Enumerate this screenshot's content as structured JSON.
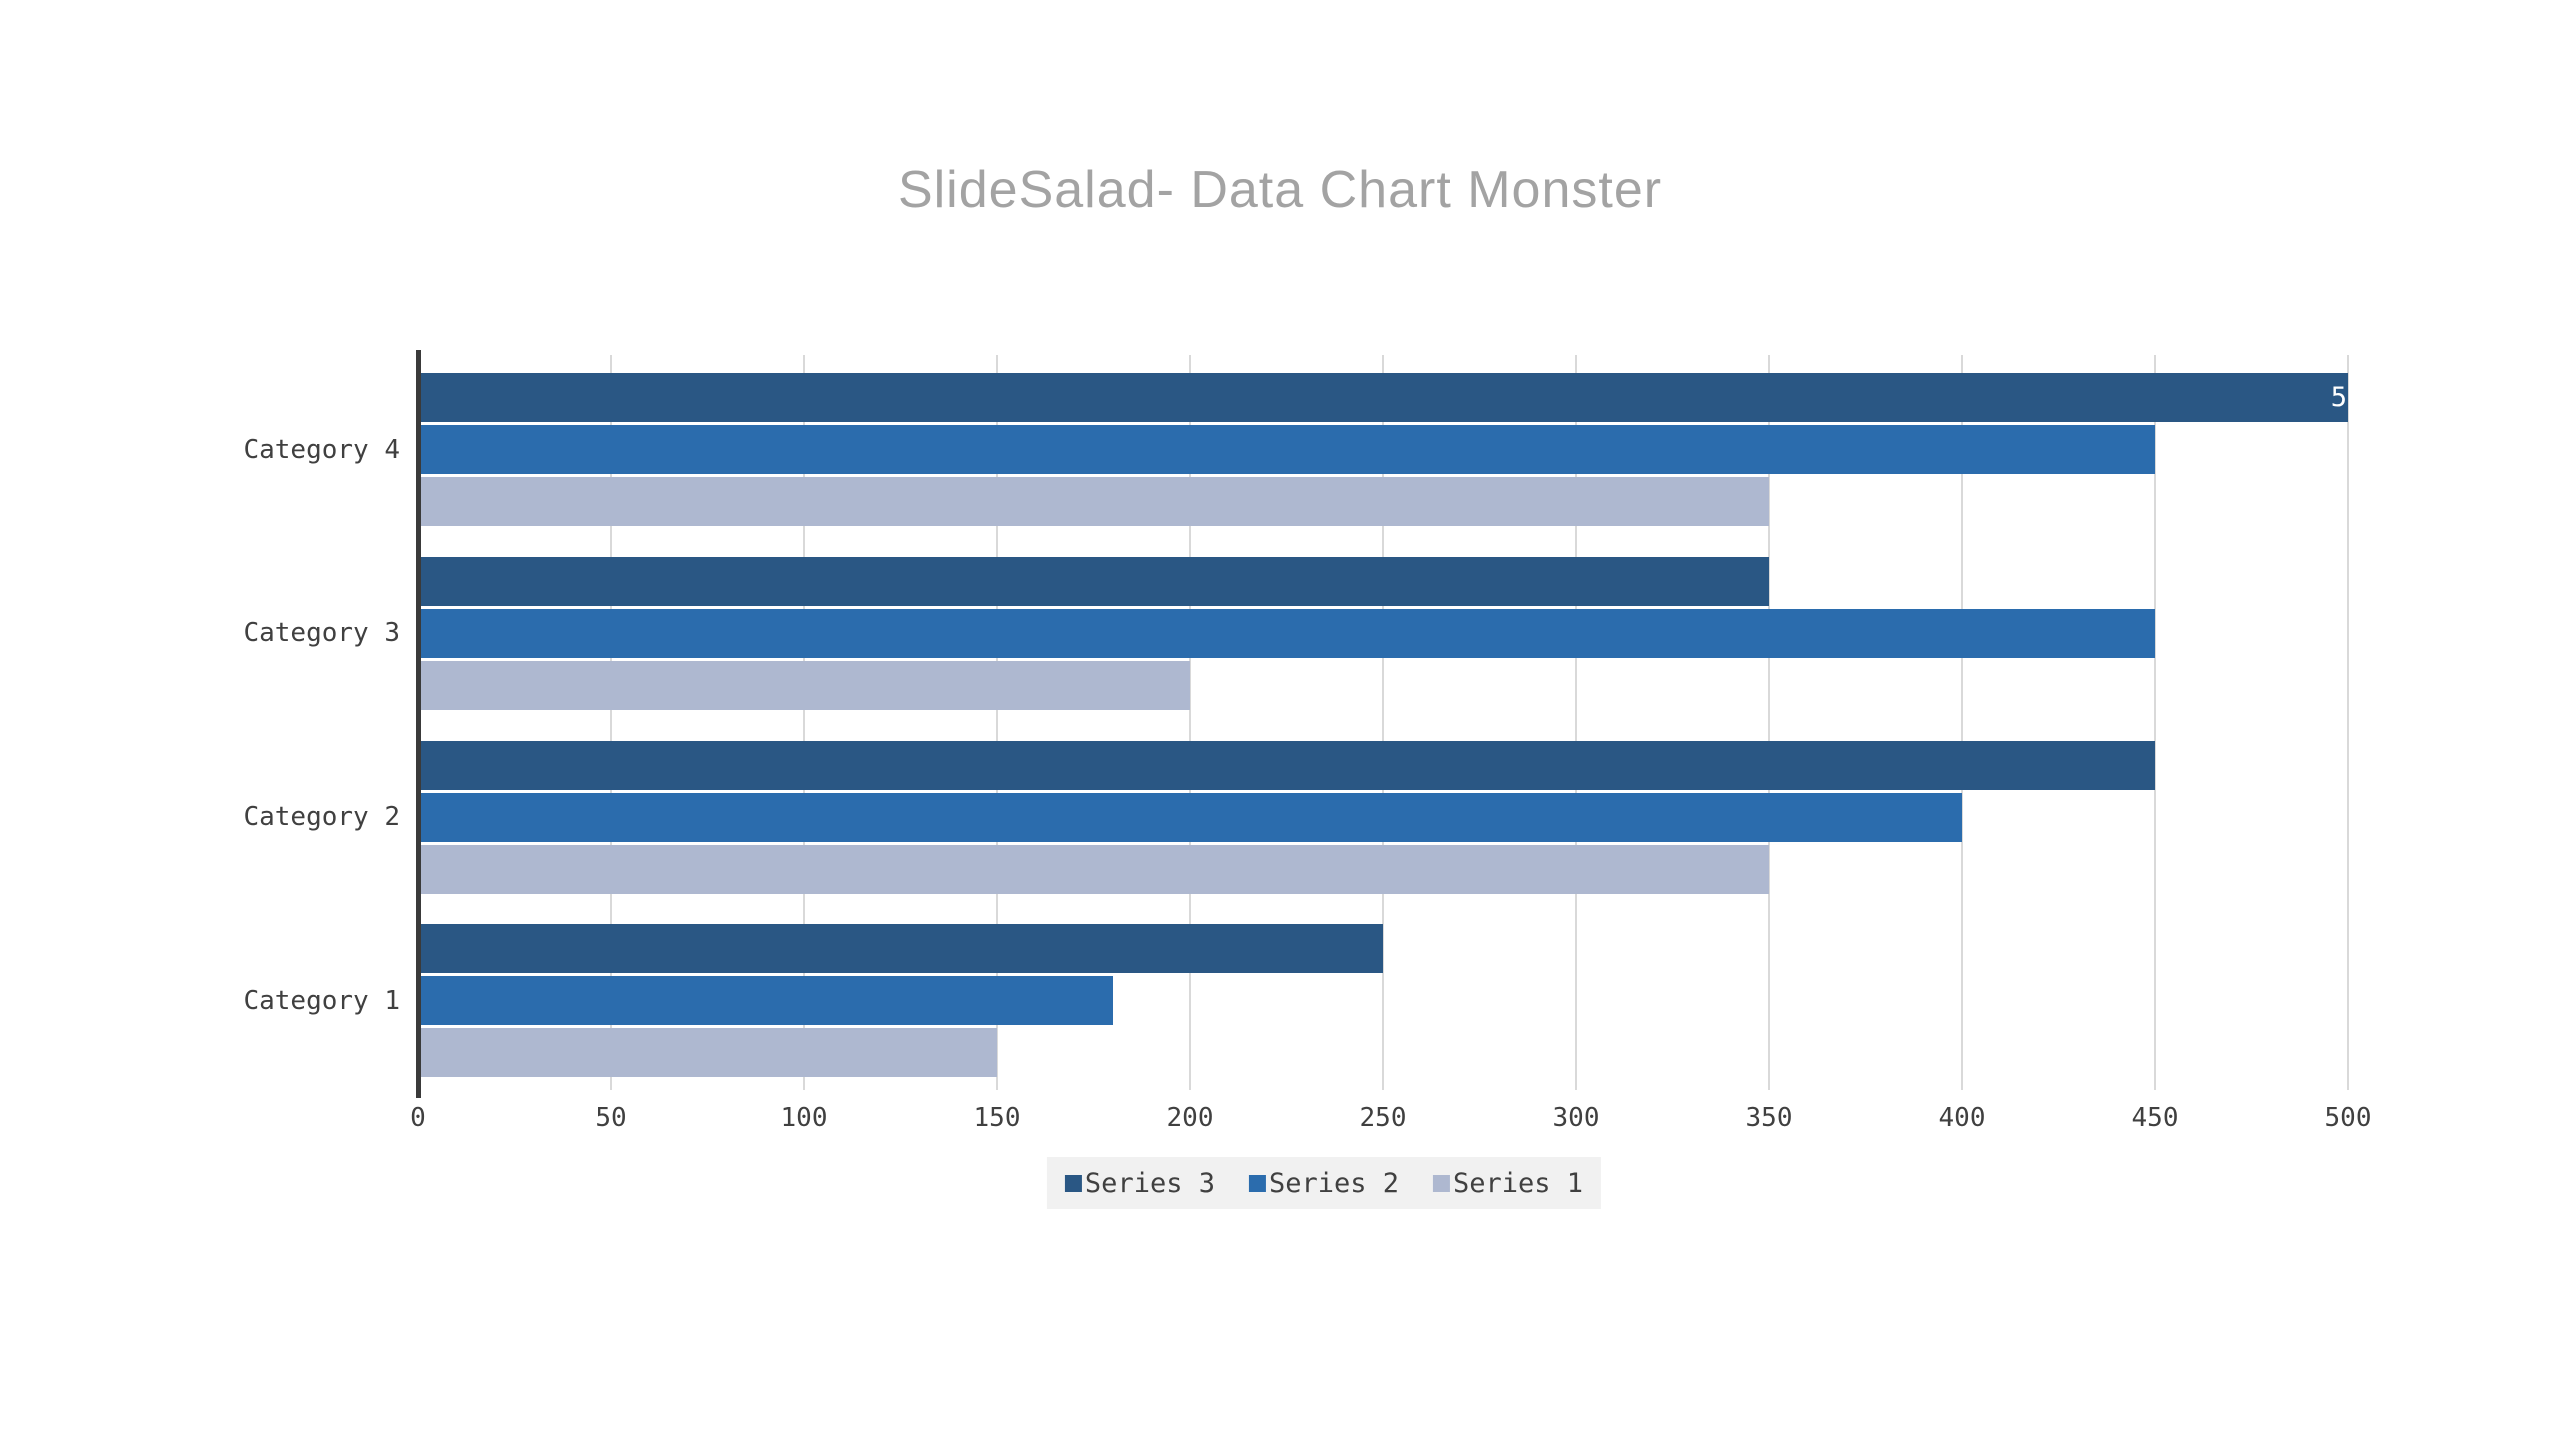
{
  "title": {
    "text": "SlideSalad- Data Chart Monster",
    "color": "#a3a3a3"
  },
  "chart_data": {
    "type": "bar",
    "orientation": "horizontal",
    "title": "SlideSalad- Data Chart Monster",
    "categories": [
      "Category 4",
      "Category 3",
      "Category 2",
      "Category 1"
    ],
    "series": [
      {
        "name": "Series 3",
        "color": "#2a5784",
        "values": [
          500,
          350,
          450,
          250
        ]
      },
      {
        "name": "Series 2",
        "color": "#2b6cad",
        "values": [
          450,
          450,
          400,
          180
        ]
      },
      {
        "name": "Series 1",
        "color": "#aeb8d0",
        "values": [
          350,
          200,
          350,
          150
        ]
      }
    ],
    "xlim": [
      0,
      500
    ],
    "x_ticks": [
      0,
      50,
      100,
      150,
      200,
      250,
      300,
      350,
      400,
      450,
      500
    ],
    "grid": true,
    "legend_position": "bottom",
    "visible_bar_label": {
      "category": "Category 4",
      "series": "Series 3",
      "text": "5",
      "represents_value": 500
    }
  },
  "legend": {
    "entries": [
      {
        "label": "Series 3",
        "color": "#2a5784"
      },
      {
        "label": "Series 2",
        "color": "#2b6cad"
      },
      {
        "label": "Series 1",
        "color": "#aeb8d0"
      }
    ],
    "background": "#f1f1f1"
  },
  "colors": {
    "axis_line": "#3a3a3a",
    "gridline": "#d9d9d9",
    "tick_text": "#404040",
    "category_text": "#404040",
    "legend_text": "#404040",
    "bar_label_text": "#ffffff",
    "page_background": "#ffffff"
  }
}
